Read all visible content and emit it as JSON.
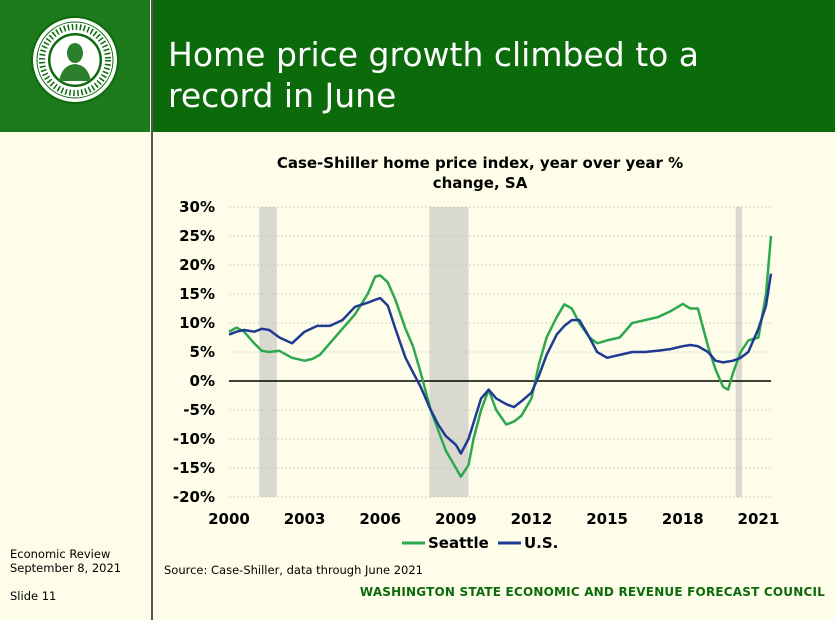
{
  "header": {
    "title": "Home price growth climbed to a record in June",
    "seal_text": "THE SEAL OF THE STATE OF WASHINGTON 1889"
  },
  "footer": {
    "left_line1": "Economic Review",
    "left_line2": "September 8, 2021",
    "slide": "Slide 11",
    "source": "Source: Case-Shiller, data through June 2021",
    "org": "WASHINGTON STATE ECONOMIC AND REVENUE FORECAST COUNCIL"
  },
  "colors": {
    "seattle": "#2ea84e",
    "us": "#1f3a93",
    "recession": "#d9d9cf",
    "header": "#0b6b0b"
  },
  "chart_data": {
    "type": "line",
    "title_line1": "Case-Shiller home price index, year over year %",
    "title_line2": "change, SA",
    "xlim": [
      2000,
      2021.5
    ],
    "ylim": [
      -20,
      30
    ],
    "x_ticks": [
      2000,
      2003,
      2006,
      2009,
      2012,
      2015,
      2018,
      2021
    ],
    "y_ticks": [
      30,
      25,
      20,
      15,
      10,
      5,
      0,
      -5,
      -10,
      -15,
      -20
    ],
    "y_tick_labels": [
      "30%",
      "25%",
      "20%",
      "15%",
      "10%",
      "5%",
      "0%",
      "-5%",
      "-10%",
      "-15%",
      "-20%"
    ],
    "grid": true,
    "legend": "bottom",
    "recessions": [
      [
        2001.2,
        2001.9
      ],
      [
        2007.95,
        2009.5
      ],
      [
        2020.1,
        2020.35
      ]
    ],
    "series": [
      {
        "name": "Seattle",
        "x": [
          2000,
          2000.3,
          2000.6,
          2001,
          2001.3,
          2001.6,
          2002,
          2002.5,
          2003,
          2003.3,
          2003.6,
          2004,
          2004.5,
          2005,
          2005.5,
          2005.8,
          2006,
          2006.3,
          2006.6,
          2007,
          2007.3,
          2007.6,
          2008,
          2008.3,
          2008.6,
          2009,
          2009.2,
          2009.5,
          2009.7,
          2010,
          2010.3,
          2010.6,
          2011,
          2011.3,
          2011.6,
          2012,
          2012.3,
          2012.6,
          2013,
          2013.3,
          2013.6,
          2013.9,
          2014.3,
          2014.6,
          2015,
          2015.5,
          2016,
          2016.5,
          2017,
          2017.5,
          2018,
          2018.3,
          2018.6,
          2019,
          2019.3,
          2019.6,
          2019.8,
          2020,
          2020.3,
          2020.6,
          2021,
          2021.3,
          2021.5
        ],
        "values": [
          8.5,
          9.2,
          8.5,
          6.5,
          5.2,
          5.0,
          5.2,
          4.0,
          3.5,
          3.8,
          4.5,
          6.5,
          9.0,
          11.5,
          15.0,
          18.0,
          18.2,
          17.0,
          14.0,
          9.0,
          6.0,
          1.5,
          -5.0,
          -8.5,
          -12.0,
          -15.0,
          -16.5,
          -14.5,
          -10.0,
          -5.0,
          -1.5,
          -5.0,
          -7.5,
          -7.0,
          -6.0,
          -3.0,
          3.0,
          7.5,
          11.0,
          13.2,
          12.5,
          10.0,
          7.5,
          6.5,
          7.0,
          7.5,
          10.0,
          10.5,
          11.0,
          12.0,
          13.3,
          12.5,
          12.5,
          6.0,
          2.0,
          -1.0,
          -1.5,
          1.5,
          5.0,
          7.0,
          7.5,
          15.0,
          25.0
        ]
      },
      {
        "name": "U.S.",
        "x": [
          2000,
          2000.3,
          2000.6,
          2001,
          2001.3,
          2001.6,
          2002,
          2002.5,
          2003,
          2003.5,
          2004,
          2004.5,
          2005,
          2005.5,
          2005.8,
          2006,
          2006.3,
          2006.6,
          2007,
          2007.3,
          2007.6,
          2008,
          2008.3,
          2008.6,
          2009,
          2009.2,
          2009.5,
          2010,
          2010.3,
          2010.6,
          2011,
          2011.3,
          2011.6,
          2012,
          2012.3,
          2012.6,
          2013,
          2013.3,
          2013.6,
          2013.9,
          2014.3,
          2014.6,
          2015,
          2015.5,
          2016,
          2016.5,
          2017,
          2017.5,
          2018,
          2018.3,
          2018.6,
          2019,
          2019.3,
          2019.6,
          2020,
          2020.3,
          2020.6,
          2021,
          2021.3,
          2021.5
        ],
        "values": [
          8.0,
          8.5,
          8.8,
          8.5,
          9.0,
          8.8,
          7.5,
          6.5,
          8.5,
          9.5,
          9.5,
          10.5,
          12.8,
          13.5,
          14.0,
          14.3,
          13.0,
          9.0,
          4.0,
          1.5,
          -1.0,
          -5.0,
          -7.5,
          -9.5,
          -11.0,
          -12.5,
          -10.0,
          -3.0,
          -1.5,
          -3.0,
          -4.0,
          -4.5,
          -3.5,
          -2.0,
          1.0,
          4.5,
          8.0,
          9.5,
          10.5,
          10.5,
          7.5,
          5.0,
          4.0,
          4.5,
          5.0,
          5.0,
          5.2,
          5.5,
          6.0,
          6.2,
          6.0,
          5.0,
          3.5,
          3.2,
          3.5,
          4.0,
          5.0,
          9.0,
          13.0,
          18.5
        ]
      }
    ]
  }
}
